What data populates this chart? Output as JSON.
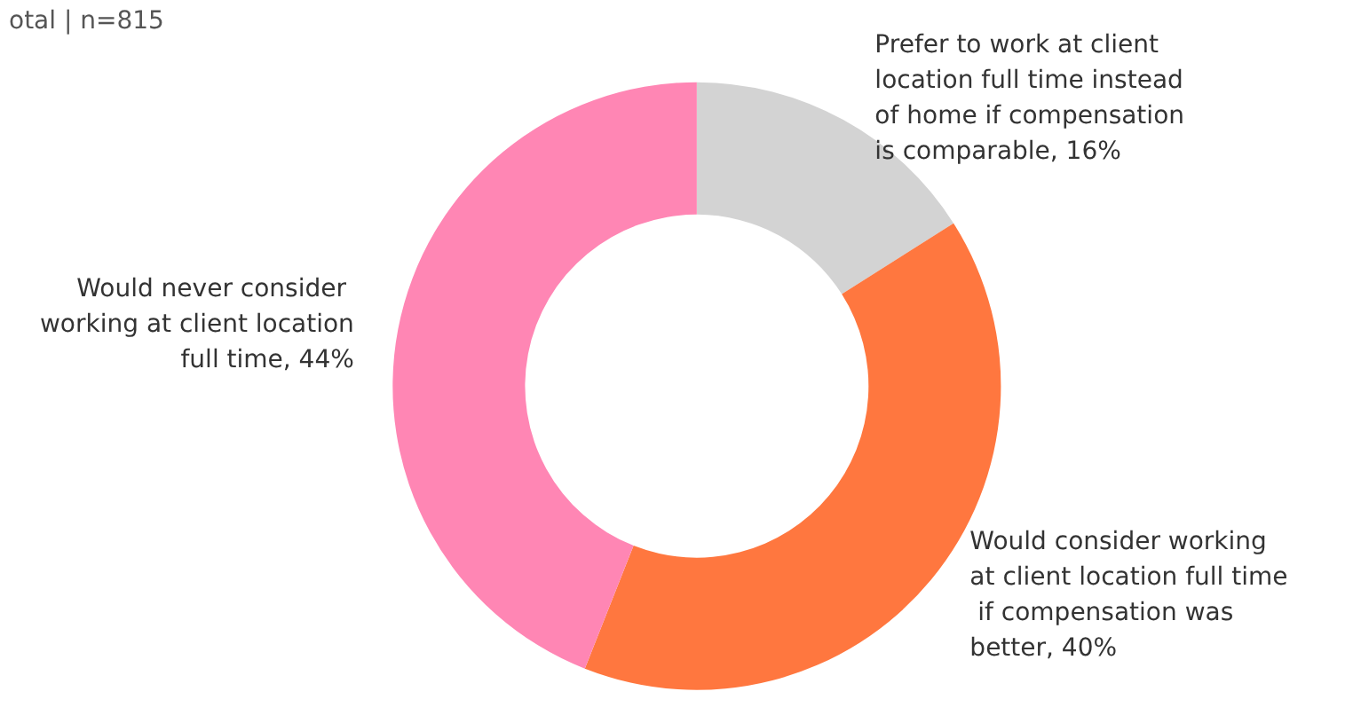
{
  "chart_data": {
    "type": "donut",
    "title": "otal | n=815",
    "categories": [
      "Prefer to work at client location full time instead of home if compensation is comparable",
      "Would consider working at client location full time if compensation was better",
      "Would never consider working at client location full time"
    ],
    "values": [
      16,
      40,
      44
    ],
    "value_labels": [
      "16%",
      "40%",
      "44%"
    ],
    "colors": [
      "#d3d3d3",
      "#ff773f",
      "#ff86b4"
    ],
    "legend": false
  }
}
